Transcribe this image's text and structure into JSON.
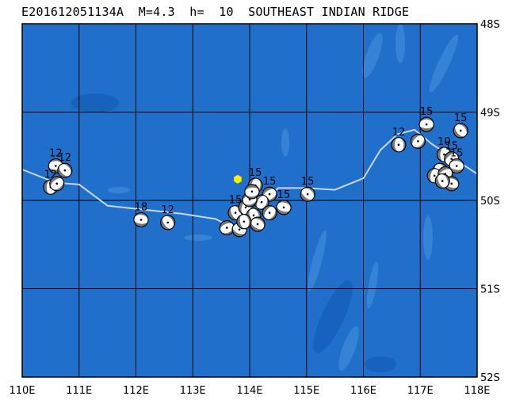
{
  "title": "E201612051134A  M=4.3  h=  10  SOUTHEAST INDIAN RIDGE",
  "map": {
    "lon_range": [
      110,
      118
    ],
    "lat_range_south": [
      48,
      52
    ],
    "lon_ticks": [
      "110E",
      "111E",
      "112E",
      "113E",
      "114E",
      "115E",
      "116E",
      "117E",
      "118E"
    ],
    "lat_ticks": [
      "48S",
      "49S",
      "50S",
      "51S",
      "52S"
    ],
    "colors": {
      "ocean": "#1f6fcb",
      "shallow": "#3a86d8",
      "deep": "#1560b8",
      "plate_boundary": "#c9d6f2",
      "compressional": "#777777",
      "epicenter": "#ffee00"
    },
    "plate_boundary_lonlat_s": [
      [
        110.0,
        49.65
      ],
      [
        110.59,
        49.8
      ],
      [
        111.0,
        49.82
      ],
      [
        111.5,
        50.06
      ],
      [
        112.8,
        50.15
      ],
      [
        113.4,
        50.21
      ],
      [
        113.7,
        50.31
      ],
      [
        114.2,
        50.05
      ],
      [
        114.5,
        49.86
      ],
      [
        115.0,
        49.86
      ],
      [
        115.5,
        49.88
      ],
      [
        116.0,
        49.75
      ],
      [
        116.3,
        49.43
      ],
      [
        116.6,
        49.25
      ],
      [
        116.9,
        49.2
      ],
      [
        117.2,
        49.36
      ],
      [
        118.0,
        49.7
      ]
    ]
  },
  "epicenter": {
    "lon": 113.79,
    "lat_s": 49.76,
    "icon": "hexagon"
  },
  "events": [
    {
      "lon": 110.59,
      "lat_s": 49.61,
      "depth": "12",
      "label": true
    },
    {
      "lon": 110.75,
      "lat_s": 49.66,
      "depth": "12",
      "label": true
    },
    {
      "lon": 110.5,
      "lat_s": 49.85,
      "depth": "12",
      "label": true
    },
    {
      "lon": 110.61,
      "lat_s": 49.81,
      "depth": "12",
      "label": false
    },
    {
      "lon": 112.09,
      "lat_s": 50.22,
      "depth": "18",
      "label": true
    },
    {
      "lon": 112.56,
      "lat_s": 50.25,
      "depth": "12",
      "label": true
    },
    {
      "lon": 114.1,
      "lat_s": 49.83,
      "depth": "15",
      "label": true
    },
    {
      "lon": 114.35,
      "lat_s": 49.93,
      "depth": "15",
      "label": true
    },
    {
      "lon": 114.6,
      "lat_s": 50.08,
      "depth": "15",
      "label": true
    },
    {
      "lon": 113.75,
      "lat_s": 50.14,
      "depth": "15",
      "label": true
    },
    {
      "lon": 113.93,
      "lat_s": 50.08,
      "depth": "15",
      "label": false
    },
    {
      "lon": 113.6,
      "lat_s": 50.31,
      "depth": "15",
      "label": false
    },
    {
      "lon": 113.82,
      "lat_s": 50.33,
      "depth": "15",
      "label": false
    },
    {
      "lon": 114.07,
      "lat_s": 50.17,
      "depth": "15",
      "label": false
    },
    {
      "lon": 114.21,
      "lat_s": 50.02,
      "depth": "15",
      "label": false
    },
    {
      "lon": 114.0,
      "lat_s": 49.99,
      "depth": "15",
      "label": false
    },
    {
      "lon": 114.14,
      "lat_s": 50.27,
      "depth": "15",
      "label": false
    },
    {
      "lon": 113.9,
      "lat_s": 50.24,
      "depth": "15",
      "label": false
    },
    {
      "lon": 114.35,
      "lat_s": 50.14,
      "depth": "15",
      "label": false
    },
    {
      "lon": 114.04,
      "lat_s": 49.9,
      "depth": "15",
      "label": false
    },
    {
      "lon": 115.02,
      "lat_s": 49.93,
      "depth": "15",
      "label": true
    },
    {
      "lon": 116.62,
      "lat_s": 49.37,
      "depth": "12",
      "label": true
    },
    {
      "lon": 116.96,
      "lat_s": 49.33,
      "depth": "15",
      "label": false
    },
    {
      "lon": 117.11,
      "lat_s": 49.14,
      "depth": "15",
      "label": true
    },
    {
      "lon": 117.71,
      "lat_s": 49.21,
      "depth": "15",
      "label": true
    },
    {
      "lon": 117.42,
      "lat_s": 49.48,
      "depth": "10",
      "label": true
    },
    {
      "lon": 117.55,
      "lat_s": 49.53,
      "depth": "15",
      "label": true
    },
    {
      "lon": 117.64,
      "lat_s": 49.61,
      "depth": "15",
      "label": true
    },
    {
      "lon": 117.35,
      "lat_s": 49.66,
      "depth": "15",
      "label": false
    },
    {
      "lon": 117.25,
      "lat_s": 49.72,
      "depth": "15",
      "label": false
    },
    {
      "lon": 117.44,
      "lat_s": 49.7,
      "depth": "15",
      "label": false
    },
    {
      "lon": 117.55,
      "lat_s": 49.81,
      "depth": "15",
      "label": false
    },
    {
      "lon": 117.39,
      "lat_s": 49.78,
      "depth": "15",
      "label": false
    }
  ]
}
